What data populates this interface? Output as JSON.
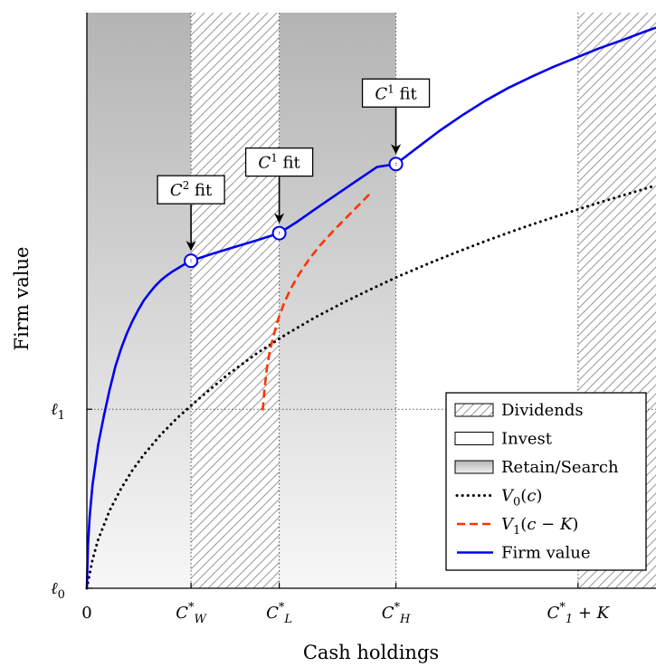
{
  "chart_data": {
    "type": "line",
    "xlabel": "Cash holdings",
    "ylabel": "Firm value",
    "xlim": [
      0,
      100
    ],
    "ylim": [
      0,
      100
    ],
    "x_ticks": [
      {
        "x": 0,
        "label": "0"
      },
      {
        "x": 18.3,
        "base": "C",
        "sup": "*",
        "sub": "W"
      },
      {
        "x": 33.8,
        "base": "C",
        "sup": "*",
        "sub": "L"
      },
      {
        "x": 54.3,
        "base": "C",
        "sup": "*",
        "sub": "H"
      },
      {
        "x": 86.3,
        "base": "C",
        "sup": "*",
        "sub": "1",
        "suffix": " + K"
      }
    ],
    "y_ticks": [
      {
        "y": 0,
        "base": "ℓ",
        "sub": "0"
      },
      {
        "y": 31.1,
        "base": "ℓ",
        "sub": "1"
      }
    ],
    "regions": [
      {
        "kind": "retain",
        "from": 0,
        "to": 18.3
      },
      {
        "kind": "dividends",
        "from": 18.3,
        "to": 33.8
      },
      {
        "kind": "retain",
        "from": 33.8,
        "to": 54.3
      },
      {
        "kind": "invest",
        "from": 54.3,
        "to": 86.3
      },
      {
        "kind": "dividends",
        "from": 86.3,
        "to": 100
      }
    ],
    "series": [
      {
        "name": "Firm value",
        "color": "#0000ee",
        "style": "solid",
        "x": [
          0,
          0.2,
          0.5,
          1,
          2,
          3,
          4,
          5,
          6,
          7,
          8,
          9,
          10,
          11,
          12,
          13,
          14,
          15,
          16,
          17,
          18.3,
          22,
          26,
          30,
          33.8,
          37,
          40,
          44,
          48,
          51,
          54.3,
          58,
          62,
          66,
          70,
          74,
          78,
          82,
          86,
          90,
          94,
          98,
          100
        ],
        "y": [
          0,
          7.5,
          12.5,
          18,
          25,
          30,
          34.5,
          38.5,
          41.6,
          44.2,
          46.4,
          48.3,
          50,
          51.3,
          52.5,
          53.5,
          54.3,
          55,
          55.6,
          56.2,
          56.9,
          58.1,
          59.3,
          60.5,
          61.7,
          63.7,
          65.8,
          68.5,
          71.2,
          73.2,
          73.7,
          76.5,
          79.5,
          82.2,
          84.7,
          86.9,
          88.8,
          90.6,
          92.2,
          93.8,
          95.2,
          96.7,
          97.4
        ]
      },
      {
        "name": "V0(c)",
        "label_base": "V",
        "label_sub": "0",
        "label_arg": "(c)",
        "color": "#000000",
        "style": "dotted",
        "x": [
          0,
          1,
          2,
          4,
          6,
          8,
          10,
          13,
          16,
          20,
          25,
          30,
          35,
          40,
          45,
          50,
          55,
          60,
          65,
          70,
          75,
          80,
          85,
          90,
          95,
          100
        ],
        "y": [
          0,
          5,
          8.5,
          13.5,
          17.3,
          20.5,
          23.2,
          26.7,
          29.7,
          33.2,
          37.3,
          40.9,
          44.1,
          47,
          49.6,
          52,
          54.3,
          56.4,
          58.4,
          60.3,
          62.1,
          63.8,
          65.4,
          67,
          68.5,
          70
        ]
      },
      {
        "name": "V1(c−K)",
        "label_base": "V",
        "label_sub": "1",
        "label_arg": "(c − K)",
        "color": "#ff3300",
        "style": "dashed",
        "x": [
          30.9,
          31.2,
          31.6,
          32.1,
          32.8,
          33.6,
          34.6,
          35.8,
          37.3,
          39,
          41,
          43.5,
          46.5,
          50
        ],
        "y": [
          30.9,
          34.5,
          38,
          41,
          43.9,
          46.7,
          49.4,
          52,
          54.6,
          57.1,
          59.6,
          62.3,
          65.3,
          68.8
        ]
      }
    ],
    "fit_markers": [
      {
        "x": 18.3,
        "y": 56.9,
        "base": "C",
        "sup": "2",
        "rest": " fit"
      },
      {
        "x": 33.8,
        "y": 61.7,
        "base": "C",
        "sup": "1",
        "rest": " fit"
      },
      {
        "x": 54.3,
        "y": 73.7,
        "base": "C",
        "sup": "1",
        "rest": " fit"
      }
    ],
    "legend": {
      "placement": "bottom-right",
      "entries": [
        {
          "kind": "dividends",
          "label": "Dividends"
        },
        {
          "kind": "invest",
          "label": "Invest"
        },
        {
          "kind": "retain",
          "label": "Retain/Search"
        },
        {
          "kind": "V0",
          "label_base": "V",
          "label_sub": "0",
          "label_arg": "(c)"
        },
        {
          "kind": "V1",
          "label_base": "V",
          "label_sub": "1",
          "label_arg": "(c − K)"
        },
        {
          "kind": "firm",
          "label": "Firm value"
        }
      ]
    },
    "grid": false
  }
}
